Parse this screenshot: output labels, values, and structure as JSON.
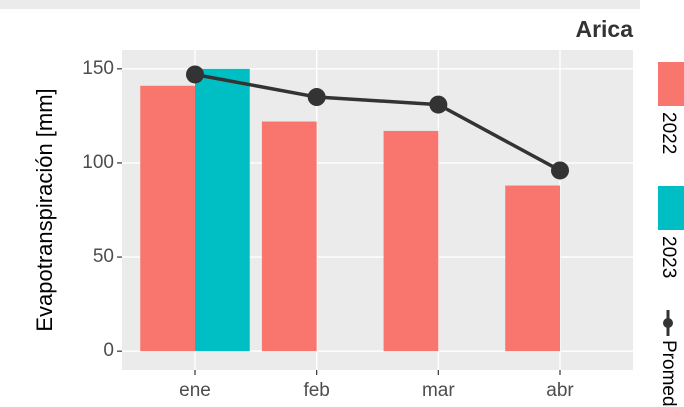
{
  "chart_data": {
    "type": "bar",
    "title": "Arica",
    "ylabel": "Evapotranspiración [mm]",
    "categories": [
      "ene",
      "feb",
      "mar",
      "abr"
    ],
    "series": [
      {
        "name": "2022",
        "color": "#F8766D",
        "values": [
          141,
          122,
          117,
          88
        ]
      },
      {
        "name": "2023",
        "color": "#00BFC4",
        "values": [
          150,
          null,
          null,
          null
        ]
      },
      {
        "name": "Promedio",
        "type": "line",
        "color": "#333333",
        "values": [
          147,
          135,
          131,
          96
        ]
      }
    ],
    "ylim": [
      -10,
      160
    ],
    "yticks": [
      0,
      50,
      100,
      150
    ],
    "grid": true
  }
}
